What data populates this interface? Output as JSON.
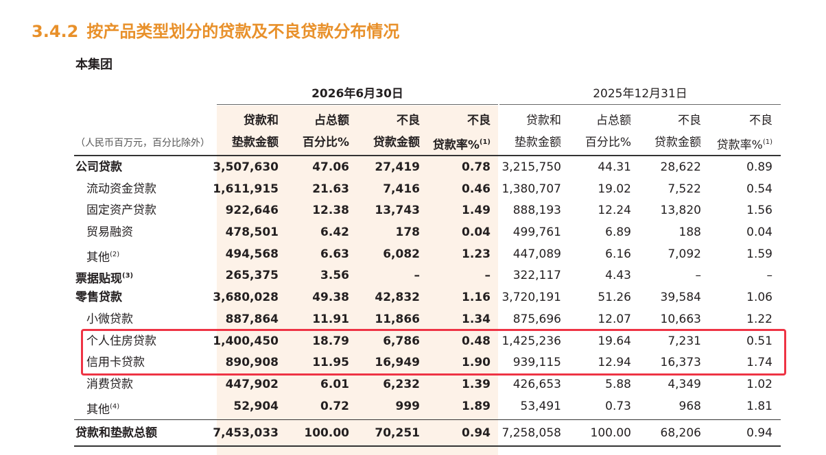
{
  "title": {
    "number": "3.4.2",
    "text": "按产品类型划分的贷款及不良贷款分布情况"
  },
  "subtitle": "本集团",
  "unit_note": "（人民币百万元，百分比除外）",
  "period_headers": [
    "2026年6月30日",
    "2025年12月31日"
  ],
  "column_headers": [
    {
      "line1": "贷款和",
      "line2": "垫款金额",
      "sup": ""
    },
    {
      "line1": "占总额",
      "line2": "百分比%",
      "sup": ""
    },
    {
      "line1": "不良",
      "line2": "贷款金额",
      "sup": ""
    },
    {
      "line1": "不良",
      "line2": "贷款率%",
      "sup": "(1)"
    },
    {
      "line1": "贷款和",
      "line2": "垫款金额",
      "sup": ""
    },
    {
      "line1": "占总额",
      "line2": "百分比%",
      "sup": ""
    },
    {
      "line1": "不良",
      "line2": "贷款金额",
      "sup": ""
    },
    {
      "line1": "不良",
      "line2": "贷款率%",
      "sup": "(1)"
    }
  ],
  "rows": [
    {
      "label": "公司贷款",
      "sup": "",
      "bold": true,
      "indent": false,
      "values": [
        "3,507,630",
        "47.06",
        "27,419",
        "0.78",
        "3,215,750",
        "44.31",
        "28,622",
        "0.89"
      ]
    },
    {
      "label": "流动资金贷款",
      "sup": "",
      "bold": false,
      "indent": true,
      "values": [
        "1,611,915",
        "21.63",
        "7,416",
        "0.46",
        "1,380,707",
        "19.02",
        "7,522",
        "0.54"
      ]
    },
    {
      "label": "固定资产贷款",
      "sup": "",
      "bold": false,
      "indent": true,
      "values": [
        "922,646",
        "12.38",
        "13,743",
        "1.49",
        "888,193",
        "12.24",
        "13,820",
        "1.56"
      ]
    },
    {
      "label": "贸易融资",
      "sup": "",
      "bold": false,
      "indent": true,
      "values": [
        "478,501",
        "6.42",
        "178",
        "0.04",
        "499,761",
        "6.89",
        "188",
        "0.04"
      ]
    },
    {
      "label": "其他",
      "sup": "(2)",
      "bold": false,
      "indent": true,
      "values": [
        "494,568",
        "6.63",
        "6,082",
        "1.23",
        "447,089",
        "6.16",
        "7,092",
        "1.59"
      ]
    },
    {
      "label": "票据贴现",
      "sup": "(3)",
      "bold": true,
      "indent": false,
      "values": [
        "265,375",
        "3.56",
        "–",
        "–",
        "322,117",
        "4.43",
        "–",
        "–"
      ]
    },
    {
      "label": "零售贷款",
      "sup": "",
      "bold": true,
      "indent": false,
      "values": [
        "3,680,028",
        "49.38",
        "42,832",
        "1.16",
        "3,720,191",
        "51.26",
        "39,584",
        "1.06"
      ]
    },
    {
      "label": "小微贷款",
      "sup": "",
      "bold": false,
      "indent": true,
      "values": [
        "887,864",
        "11.91",
        "11,866",
        "1.34",
        "875,696",
        "12.07",
        "10,663",
        "1.22"
      ]
    },
    {
      "label": "个人住房贷款",
      "sup": "",
      "bold": false,
      "indent": true,
      "values": [
        "1,400,450",
        "18.79",
        "6,786",
        "0.48",
        "1,425,236",
        "19.64",
        "7,231",
        "0.51"
      ]
    },
    {
      "label": "信用卡贷款",
      "sup": "",
      "bold": false,
      "indent": true,
      "values": [
        "890,908",
        "11.95",
        "16,949",
        "1.90",
        "939,115",
        "12.94",
        "16,373",
        "1.74"
      ]
    },
    {
      "label": "消费贷款",
      "sup": "",
      "bold": false,
      "indent": true,
      "values": [
        "447,902",
        "6.01",
        "6,232",
        "1.39",
        "426,653",
        "5.88",
        "4,349",
        "1.02"
      ]
    },
    {
      "label": "其他",
      "sup": "(4)",
      "bold": false,
      "indent": true,
      "values": [
        "52,904",
        "0.72",
        "999",
        "1.89",
        "53,491",
        "0.73",
        "968",
        "1.81"
      ]
    }
  ],
  "total_row": {
    "label": "贷款和垫款总额",
    "values": [
      "7,453,033",
      "100.00",
      "70,251",
      "0.94",
      "7,258,058",
      "100.00",
      "68,206",
      "0.94"
    ]
  },
  "colors": {
    "title": "#e8902a",
    "shade": "#fdf2e8",
    "highlight": "#ee3344"
  }
}
